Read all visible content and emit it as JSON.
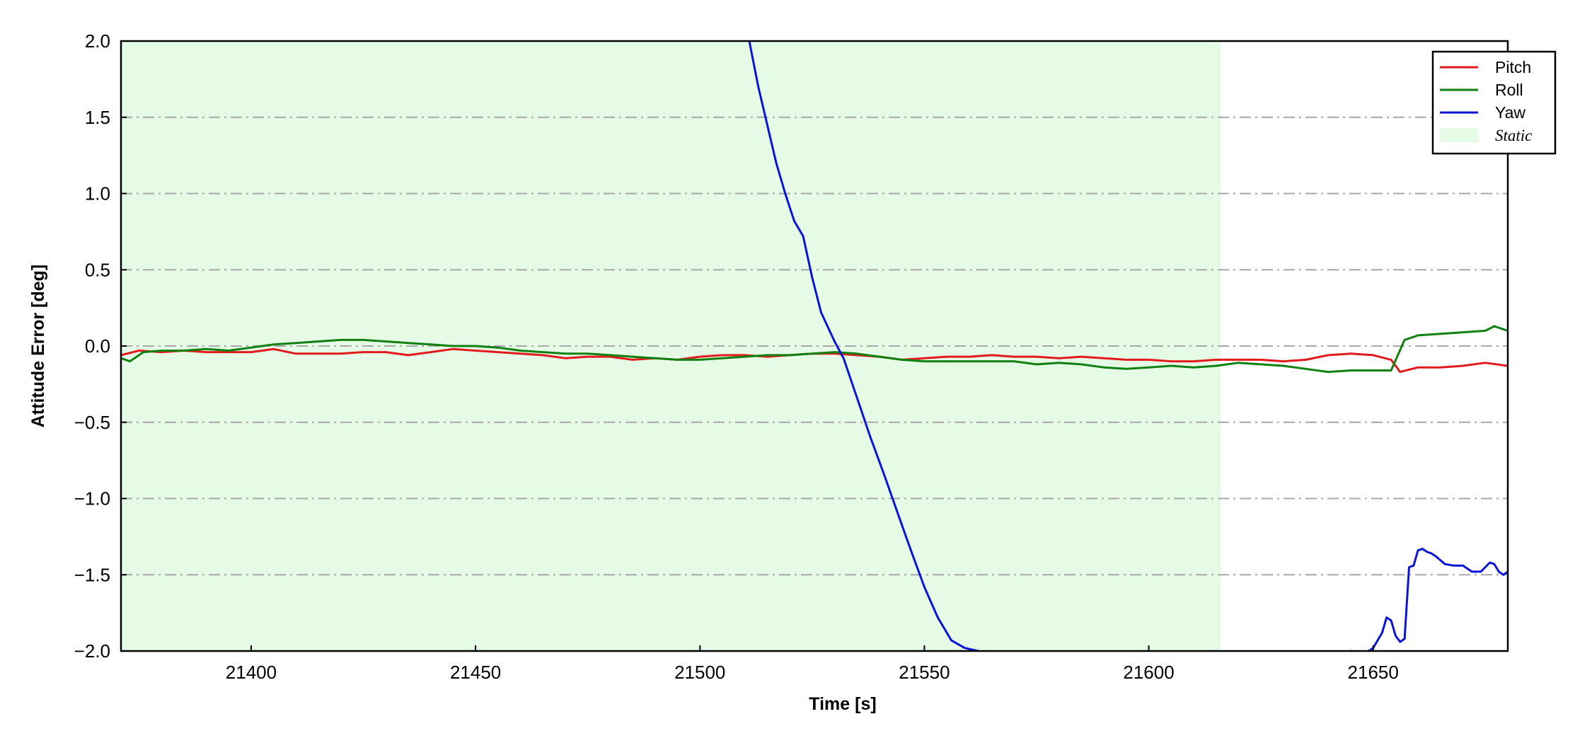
{
  "chart_data": {
    "type": "line",
    "title": "",
    "xlabel": "Time [s]",
    "ylabel": "Attitude Error [deg]",
    "xlim": [
      21371,
      21680
    ],
    "ylim": [
      -2.0,
      2.0
    ],
    "xticks": [
      21400,
      21450,
      21500,
      21550,
      21600,
      21650
    ],
    "xtick_labels": [
      "21400",
      "21450",
      "21500",
      "21550",
      "21600",
      "21650"
    ],
    "yticks": [
      2.0,
      1.5,
      1.0,
      0.5,
      0.0,
      -0.5,
      -1.0,
      -1.5,
      -2.0
    ],
    "ytick_labels": [
      "2.0",
      "1.5",
      "1.0",
      "0.5",
      "0.0",
      "−0.5",
      "−1.0",
      "−1.5",
      "−2.0"
    ],
    "grid": "horizontal dash-dot",
    "legend_position": "top-right",
    "static_region": {
      "label": "Static",
      "x_start": 21371,
      "x_end": 21616,
      "color": "#e6fbe6"
    },
    "series": [
      {
        "name": "Pitch",
        "color": "#e31a1c",
        "x": [
          21371,
          21375,
          21380,
          21385,
          21390,
          21395,
          21400,
          21405,
          21410,
          21415,
          21420,
          21425,
          21430,
          21435,
          21440,
          21445,
          21450,
          21455,
          21460,
          21465,
          21470,
          21475,
          21480,
          21485,
          21490,
          21495,
          21500,
          21505,
          21510,
          21515,
          21520,
          21525,
          21530,
          21535,
          21540,
          21545,
          21550,
          21555,
          21560,
          21565,
          21570,
          21575,
          21580,
          21585,
          21590,
          21595,
          21600,
          21605,
          21610,
          21615,
          21620,
          21625,
          21630,
          21635,
          21640,
          21645,
          21650,
          21654,
          21656,
          21660,
          21665,
          21670,
          21675,
          21680
        ],
        "y": [
          -0.06,
          -0.03,
          -0.04,
          -0.03,
          -0.04,
          -0.04,
          -0.04,
          -0.02,
          -0.05,
          -0.05,
          -0.05,
          -0.04,
          -0.04,
          -0.06,
          -0.04,
          -0.02,
          -0.03,
          -0.04,
          -0.05,
          -0.06,
          -0.08,
          -0.07,
          -0.07,
          -0.09,
          -0.08,
          -0.09,
          -0.07,
          -0.06,
          -0.06,
          -0.07,
          -0.06,
          -0.05,
          -0.05,
          -0.06,
          -0.07,
          -0.09,
          -0.08,
          -0.07,
          -0.07,
          -0.06,
          -0.07,
          -0.07,
          -0.08,
          -0.07,
          -0.08,
          -0.09,
          -0.09,
          -0.1,
          -0.1,
          -0.09,
          -0.09,
          -0.09,
          -0.1,
          -0.09,
          -0.06,
          -0.05,
          -0.06,
          -0.09,
          -0.17,
          -0.14,
          -0.14,
          -0.13,
          -0.11,
          -0.13
        ]
      },
      {
        "name": "Roll",
        "color": "#108010",
        "x": [
          21371,
          21373,
          21376,
          21380,
          21385,
          21390,
          21395,
          21400,
          21405,
          21410,
          21415,
          21420,
          21425,
          21430,
          21435,
          21440,
          21445,
          21450,
          21455,
          21460,
          21465,
          21470,
          21475,
          21480,
          21485,
          21490,
          21495,
          21500,
          21505,
          21510,
          21515,
          21520,
          21525,
          21530,
          21535,
          21540,
          21545,
          21550,
          21555,
          21560,
          21565,
          21570,
          21575,
          21580,
          21585,
          21590,
          21595,
          21600,
          21605,
          21610,
          21615,
          21620,
          21625,
          21630,
          21635,
          21640,
          21645,
          21650,
          21654,
          21657,
          21660,
          21665,
          21670,
          21675,
          21677,
          21680
        ],
        "y": [
          -0.08,
          -0.1,
          -0.04,
          -0.03,
          -0.03,
          -0.02,
          -0.03,
          -0.01,
          0.01,
          0.02,
          0.03,
          0.04,
          0.04,
          0.03,
          0.02,
          0.01,
          0.0,
          0.0,
          -0.01,
          -0.03,
          -0.04,
          -0.05,
          -0.05,
          -0.06,
          -0.07,
          -0.08,
          -0.09,
          -0.09,
          -0.08,
          -0.07,
          -0.06,
          -0.06,
          -0.05,
          -0.04,
          -0.05,
          -0.07,
          -0.09,
          -0.1,
          -0.1,
          -0.1,
          -0.1,
          -0.1,
          -0.12,
          -0.11,
          -0.12,
          -0.14,
          -0.15,
          -0.14,
          -0.13,
          -0.14,
          -0.13,
          -0.11,
          -0.12,
          -0.13,
          -0.15,
          -0.17,
          -0.16,
          -0.16,
          -0.16,
          0.04,
          0.07,
          0.08,
          0.09,
          0.1,
          0.13,
          0.1
        ]
      },
      {
        "name": "Yaw",
        "color": "#0a14d8",
        "segments": [
          {
            "x": [
              21511,
              21513,
              21515,
              21517,
              21519,
              21521,
              21523,
              21525,
              21527,
              21530,
              21532,
              21535,
              21538,
              21541,
              21544,
              21547,
              21550,
              21553,
              21556,
              21559,
              21562
            ],
            "y": [
              2.0,
              1.7,
              1.45,
              1.2,
              1.0,
              0.82,
              0.72,
              0.45,
              0.22,
              0.03,
              -0.08,
              -0.34,
              -0.6,
              -0.84,
              -1.09,
              -1.34,
              -1.58,
              -1.78,
              -1.93,
              -1.98,
              -2.0
            ]
          },
          {
            "x": [
              21645,
              21648,
              21650,
              21652,
              21653,
              21654,
              21655,
              21656,
              21657,
              21658,
              21659,
              21660,
              21661,
              21662,
              21663,
              21664,
              21666,
              21668,
              21670,
              21672,
              21674,
              21676,
              21677,
              21678,
              21679,
              21680
            ],
            "y": [
              -2.0,
              -2.02,
              -1.98,
              -1.88,
              -1.78,
              -1.8,
              -1.9,
              -1.94,
              -1.92,
              -1.45,
              -1.44,
              -1.34,
              -1.33,
              -1.35,
              -1.36,
              -1.38,
              -1.43,
              -1.44,
              -1.44,
              -1.48,
              -1.48,
              -1.42,
              -1.43,
              -1.48,
              -1.5,
              -1.48
            ]
          }
        ]
      }
    ]
  }
}
